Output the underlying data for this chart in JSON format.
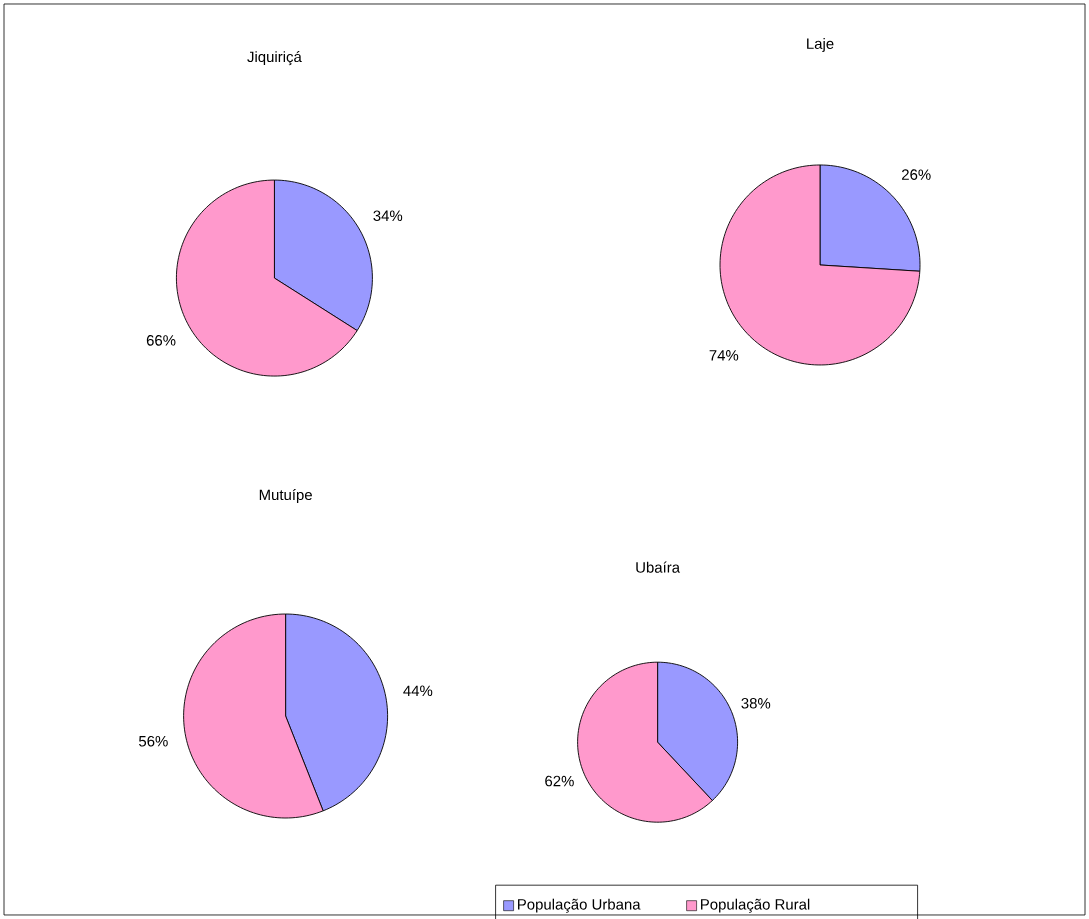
{
  "chart_data": [
    {
      "type": "pie",
      "title": "Jiquiriçá",
      "categories": [
        null,
        null
      ],
      "values": [
        34,
        66
      ],
      "colors": [
        "#9999ff",
        "#ff99cc"
      ],
      "value_labels": [
        "34%",
        "66%"
      ]
    },
    {
      "type": "pie",
      "title": "Laje",
      "categories": [
        null,
        null
      ],
      "values": [
        26,
        74
      ],
      "colors": [
        "#9999ff",
        "#ff99cc"
      ],
      "value_labels": [
        "26%",
        "74%"
      ]
    },
    {
      "type": "pie",
      "title": "Mutuípe",
      "categories": [
        null,
        null
      ],
      "values": [
        44,
        56
      ],
      "colors": [
        "#9999ff",
        "#ff99cc"
      ],
      "value_labels": [
        "44%",
        "56%"
      ]
    },
    {
      "type": "pie",
      "title": "Ubaíra",
      "categories": [
        "População Urbana",
        "População Rural"
      ],
      "values": [
        38,
        62
      ],
      "colors": [
        "#9999ff",
        "#ff99cc"
      ],
      "value_labels": [
        "38%",
        "62%"
      ],
      "legend": "bottom right"
    }
  ]
}
